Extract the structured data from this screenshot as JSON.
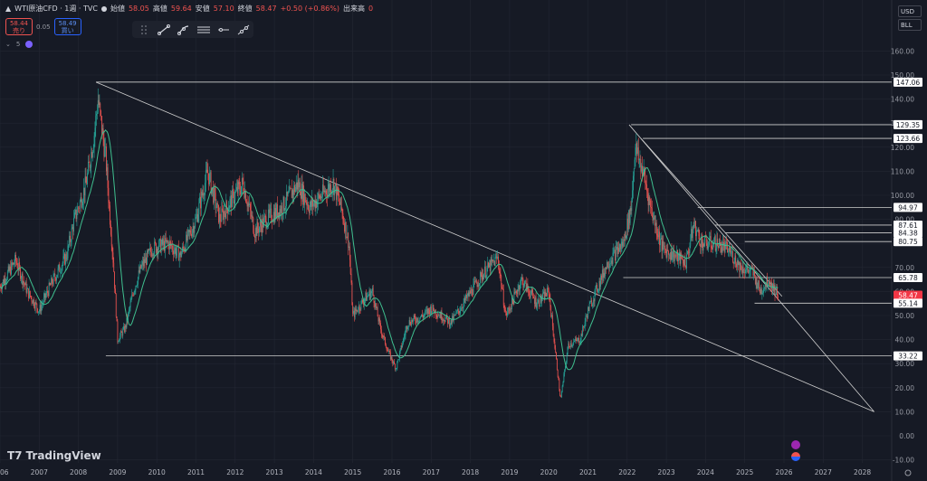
{
  "header": {
    "symbol": "WTI原油CFD · 1週 · TVC",
    "open_label": "始値",
    "open": "58.05",
    "high_label": "高値",
    "high": "59.64",
    "low_label": "安値",
    "low": "57.10",
    "close_label": "終値",
    "close": "58.47",
    "change": "+0.50 (+0.86%)",
    "volume_label": "出来高",
    "volume": "0"
  },
  "quote": {
    "sell_price": "58.44",
    "sell_label": "売り",
    "spread": "0.05",
    "buy_price": "58.49",
    "buy_label": "買い"
  },
  "indicators": {
    "count": "5"
  },
  "currency": {
    "currency": "USD",
    "unit": "BLL"
  },
  "brand": "TradingView",
  "colors": {
    "background": "#161a25",
    "grid": "#232733",
    "candle_up": "#26a69a",
    "candle_down": "#ef5350",
    "ma": "#3fbf8f",
    "line": "#cfcfcf",
    "price_tag": "#f23645"
  },
  "chart_data": {
    "type": "line",
    "title": "WTI原油CFD · 1週 · TVC",
    "xlabel": "",
    "ylabel": "",
    "x_ticks": [
      "2006",
      "2007",
      "2008",
      "2009",
      "2010",
      "2011",
      "2012",
      "2013",
      "2014",
      "2015",
      "2016",
      "2017",
      "2018",
      "2019",
      "2020",
      "2021",
      "2022",
      "2023",
      "2024",
      "2025",
      "2026",
      "2027",
      "2028"
    ],
    "y_ticks": [
      "-10.00",
      "0.00",
      "10.00",
      "20.00",
      "30.00",
      "40.00",
      "50.00",
      "60.00",
      "70.00",
      "80.00",
      "90.00",
      "100.00",
      "110.00",
      "120.00",
      "130.00",
      "140.00",
      "150.00",
      "160.00"
    ],
    "ylim": [
      -12,
      170
    ],
    "xlim": [
      2006.0,
      2028.8
    ],
    "series": [
      {
        "x": [
          2006.0,
          2006.4,
          2006.7,
          2007.0,
          2007.3,
          2007.7,
          2007.9,
          2008.2,
          2008.4,
          2008.5,
          2008.7,
          2008.9,
          2009.0,
          2009.2,
          2009.4,
          2009.6,
          2009.9,
          2010.3,
          2010.6,
          2011.0,
          2011.3,
          2011.6,
          2011.9,
          2012.2,
          2012.5,
          2012.8,
          2013.2,
          2013.6,
          2013.9,
          2014.2,
          2014.5,
          2014.7,
          2014.9,
          2015.0,
          2015.3,
          2015.5,
          2015.7,
          2015.9,
          2016.1,
          2016.4,
          2016.8,
          2017.0,
          2017.5,
          2017.9,
          2018.3,
          2018.7,
          2018.9,
          2019.0,
          2019.3,
          2019.7,
          2020.0,
          2020.2,
          2020.3,
          2020.5,
          2020.8,
          2021.0,
          2021.5,
          2021.9,
          2022.1,
          2022.2,
          2022.4,
          2022.6,
          2022.9,
          2023.2,
          2023.5,
          2023.7,
          2023.9,
          2024.3,
          2024.6,
          2024.9,
          2025.2,
          2025.4,
          2025.6,
          2025.85
        ],
        "y": [
          62,
          73,
          60,
          52,
          63,
          75,
          90,
          105,
          125,
          140,
          115,
          70,
          40,
          45,
          60,
          70,
          78,
          80,
          75,
          90,
          110,
          90,
          98,
          105,
          85,
          90,
          95,
          105,
          95,
          100,
          105,
          95,
          80,
          50,
          57,
          60,
          45,
          35,
          28,
          47,
          50,
          53,
          47,
          57,
          67,
          74,
          50,
          53,
          65,
          55,
          60,
          30,
          15,
          38,
          40,
          52,
          72,
          80,
          95,
          120,
          110,
          95,
          78,
          75,
          72,
          88,
          80,
          80,
          77,
          70,
          68,
          60,
          65,
          58.47
        ]
      }
    ],
    "annotations": [
      "147.06",
      "129.35",
      "123.66",
      "94.97",
      "87.61",
      "84.38",
      "80.75",
      "65.78",
      "58.47",
      "55.14",
      "33.22"
    ]
  }
}
